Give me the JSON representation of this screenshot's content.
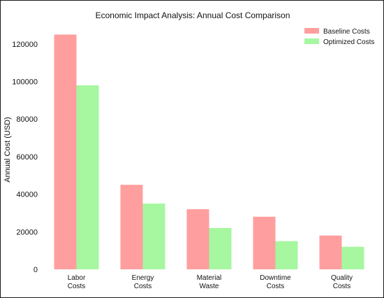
{
  "chart_data": {
    "type": "bar",
    "title": "Economic Impact Analysis: Annual Cost Comparison",
    "ylabel": "Annual Cost (USD)",
    "xlabel": "",
    "categories": [
      [
        "Labor",
        "Costs"
      ],
      [
        "Energy",
        "Costs"
      ],
      [
        "Material",
        "Waste"
      ],
      [
        "Downtime",
        "Costs"
      ],
      [
        "Quality",
        "Costs"
      ]
    ],
    "series": [
      {
        "name": "Baseline Costs",
        "color": "#ff9e9e",
        "values": [
          125000,
          45000,
          32000,
          28000,
          18000
        ]
      },
      {
        "name": "Optimized Costs",
        "color": "#a6f7a0",
        "values": [
          98000,
          35000,
          22000,
          15000,
          12000
        ]
      }
    ],
    "ylim": [
      0,
      130000
    ],
    "yticks": [
      0,
      20000,
      40000,
      60000,
      80000,
      100000,
      120000
    ],
    "ytick_labels": [
      "0",
      "20000",
      "40000",
      "60000",
      "80000",
      "100000",
      "120000"
    ],
    "grid": false,
    "legend_position": "top-right"
  }
}
